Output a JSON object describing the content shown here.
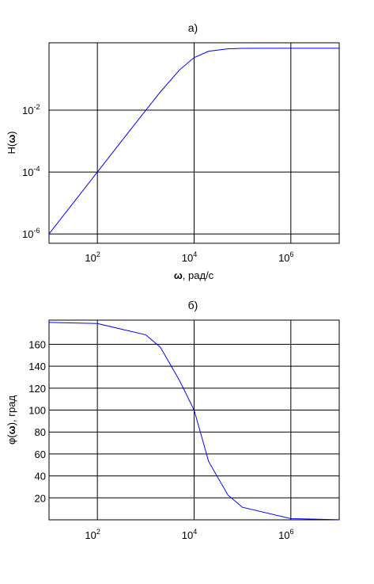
{
  "chart_data": [
    {
      "type": "line",
      "title": "а)",
      "xlabel_symbol": "ω",
      "xlabel_rest": ", рад/с",
      "ylabel_prefix": "H(",
      "ylabel_symbol": "ω",
      "ylabel_suffix": ")",
      "x_scale": "log",
      "y_scale": "log",
      "xlim": [
        10,
        10000000
      ],
      "ylim": [
        5e-07,
        1.5
      ],
      "grid": true,
      "xticks": [
        {
          "value": 100,
          "base": "10",
          "exp": "2"
        },
        {
          "value": 10000,
          "base": "10",
          "exp": "4"
        },
        {
          "value": 1000000,
          "base": "10",
          "exp": "6"
        }
      ],
      "yticks": [
        {
          "value": 0.01,
          "base": "10",
          "exp": "-2"
        },
        {
          "value": 0.0001,
          "base": "10",
          "exp": "-4"
        },
        {
          "value": 1e-06,
          "base": "10",
          "exp": "-6"
        }
      ],
      "series": [
        {
          "color": "#0000ff",
          "x": [
            10,
            20,
            50,
            100,
            200,
            500,
            1000,
            2000,
            5000,
            10000,
            20000,
            50000,
            100000,
            1000000,
            10000000
          ],
          "y": [
            1e-06,
            4e-06,
            2.5e-05,
            0.0001,
            0.0004,
            0.0025,
            0.0099,
            0.0385,
            0.2,
            0.5,
            0.8,
            0.96,
            0.99,
            1.0,
            1.0
          ]
        }
      ]
    },
    {
      "type": "line",
      "title": "б)",
      "ylabel_prefix": "φ(",
      "ylabel_symbol": "ω",
      "ylabel_suffix": "), град",
      "x_scale": "log",
      "y_scale": "linear",
      "xlim": [
        10,
        10000000
      ],
      "ylim": [
        0,
        182
      ],
      "grid": true,
      "xticks": [
        {
          "value": 100,
          "base": "10",
          "exp": "2"
        },
        {
          "value": 10000,
          "base": "10",
          "exp": "4"
        },
        {
          "value": 1000000,
          "base": "10",
          "exp": "6"
        }
      ],
      "yticks": [
        20,
        40,
        60,
        80,
        100,
        120,
        140,
        160
      ],
      "series": [
        {
          "color": "#0000ff",
          "x": [
            10,
            100,
            1000,
            2000,
            5000,
            10000,
            20000,
            50000,
            100000,
            1000000,
            10000000
          ],
          "y": [
            179.9,
            178.9,
            168.6,
            157.4,
            126.9,
            100,
            53.1,
            22.6,
            11.4,
            1.1,
            0.1
          ]
        }
      ]
    }
  ]
}
